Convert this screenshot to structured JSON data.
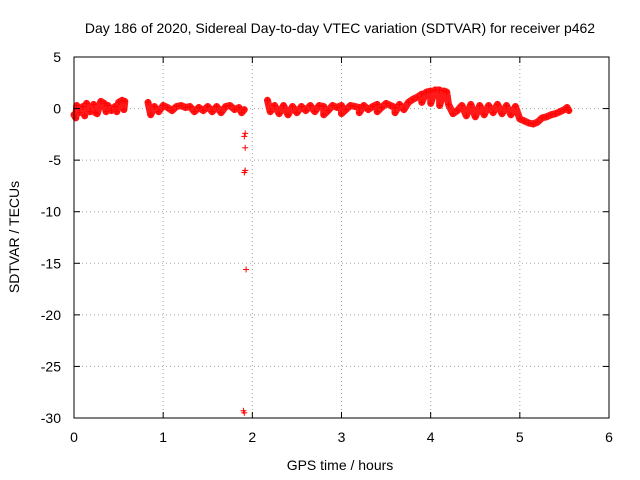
{
  "chart_data": {
    "type": "scatter",
    "title": "Day 186 of 2020, Sidereal Day-to-day VTEC variation (SDTVAR) for receiver p462",
    "xlabel": "GPS time / hours",
    "ylabel": "SDTVAR / TECUs",
    "xlim": [
      0,
      6
    ],
    "ylim": [
      -30,
      5
    ],
    "xticks": [
      0,
      1,
      2,
      3,
      4,
      5,
      6
    ],
    "yticks": [
      5,
      0,
      -5,
      -10,
      -15,
      -20,
      -25,
      -30
    ],
    "grid": true,
    "marker": "+",
    "series": [
      {
        "name": "SDTVAR",
        "color": "#ff0000",
        "points": [
          [
            0.0,
            -0.6
          ],
          [
            0.03,
            0.3
          ],
          [
            0.06,
            -0.4
          ],
          [
            0.1,
            0.2
          ],
          [
            0.14,
            0.5
          ],
          [
            0.18,
            -0.3
          ],
          [
            0.22,
            0.4
          ],
          [
            0.26,
            -0.5
          ],
          [
            0.3,
            0.7
          ],
          [
            0.34,
            0.5
          ],
          [
            0.38,
            0.3
          ],
          [
            0.42,
            -0.2
          ],
          [
            0.46,
            0.2
          ],
          [
            0.5,
            0.6
          ],
          [
            0.54,
            0.8
          ],
          [
            0.57,
            0.7
          ],
          [
            0.02,
            -0.9
          ],
          [
            0.12,
            -0.7
          ],
          [
            0.24,
            -0.4
          ],
          [
            0.36,
            -0.3
          ],
          [
            0.48,
            -0.3
          ],
          [
            0.56,
            -0.1
          ],
          [
            0.83,
            0.6
          ],
          [
            0.86,
            -0.6
          ],
          [
            0.9,
            0.2
          ],
          [
            0.95,
            -0.3
          ],
          [
            1.0,
            0.3
          ],
          [
            1.05,
            0.1
          ],
          [
            1.1,
            -0.2
          ],
          [
            1.15,
            0.2
          ],
          [
            1.2,
            0.3
          ],
          [
            1.25,
            0.1
          ],
          [
            1.3,
            0.2
          ],
          [
            1.35,
            -0.3
          ],
          [
            1.4,
            0.1
          ],
          [
            1.45,
            -0.2
          ],
          [
            1.5,
            0.2
          ],
          [
            1.55,
            -0.3
          ],
          [
            1.6,
            0.2
          ],
          [
            1.65,
            -0.4
          ],
          [
            1.7,
            0.2
          ],
          [
            1.75,
            0.3
          ],
          [
            1.8,
            -0.1
          ],
          [
            1.85,
            0.1
          ],
          [
            1.88,
            -0.4
          ],
          [
            1.91,
            -0.1
          ],
          [
            1.92,
            -2.4
          ],
          [
            1.91,
            -2.7
          ],
          [
            1.92,
            -3.8
          ],
          [
            1.92,
            -6.0
          ],
          [
            1.91,
            -6.2
          ],
          [
            1.93,
            -15.6
          ],
          [
            1.9,
            -29.3
          ],
          [
            1.91,
            -29.5
          ],
          [
            2.17,
            0.8
          ],
          [
            2.2,
            -0.3
          ],
          [
            2.25,
            0.3
          ],
          [
            2.3,
            -0.5
          ],
          [
            2.35,
            0.3
          ],
          [
            2.4,
            -0.6
          ],
          [
            2.45,
            0.2
          ],
          [
            2.5,
            -0.4
          ],
          [
            2.55,
            0.2
          ],
          [
            2.6,
            -0.2
          ],
          [
            2.65,
            0.3
          ],
          [
            2.7,
            -0.3
          ],
          [
            2.75,
            0.3
          ],
          [
            2.8,
            0.2
          ],
          [
            2.85,
            -0.2
          ],
          [
            2.9,
            0.3
          ],
          [
            2.95,
            0.1
          ],
          [
            3.0,
            0.3
          ],
          [
            3.05,
            -0.1
          ],
          [
            3.1,
            0.3
          ],
          [
            3.15,
            0.2
          ],
          [
            3.2,
            0.1
          ],
          [
            3.25,
            0.3
          ],
          [
            3.3,
            -0.1
          ],
          [
            3.35,
            0.2
          ],
          [
            3.4,
            0.4
          ],
          [
            3.45,
            0.1
          ],
          [
            3.5,
            0.5
          ],
          [
            3.55,
            0.3
          ],
          [
            3.6,
            0.1
          ],
          [
            3.65,
            0.4
          ],
          [
            3.7,
            -0.1
          ],
          [
            3.75,
            0.6
          ],
          [
            3.8,
            0.9
          ],
          [
            3.85,
            1.1
          ],
          [
            3.9,
            1.4
          ],
          [
            3.95,
            1.6
          ],
          [
            4.0,
            1.7
          ],
          [
            4.05,
            1.8
          ],
          [
            4.1,
            1.8
          ],
          [
            4.15,
            1.7
          ],
          [
            4.18,
            1.6
          ],
          [
            4.2,
            0.4
          ],
          [
            4.25,
            -0.5
          ],
          [
            4.3,
            -0.2
          ],
          [
            4.35,
            0.3
          ],
          [
            4.4,
            -0.7
          ],
          [
            4.45,
            0.4
          ],
          [
            4.5,
            -0.8
          ],
          [
            4.55,
            0.3
          ],
          [
            4.6,
            -0.6
          ],
          [
            4.65,
            0.3
          ],
          [
            4.7,
            -0.4
          ],
          [
            4.75,
            0.4
          ],
          [
            4.8,
            -0.5
          ],
          [
            4.85,
            0.3
          ],
          [
            4.9,
            -0.6
          ],
          [
            4.95,
            0.2
          ],
          [
            5.0,
            -1.0
          ],
          [
            5.05,
            -1.2
          ],
          [
            5.1,
            -1.4
          ],
          [
            5.15,
            -1.5
          ],
          [
            5.2,
            -1.3
          ],
          [
            5.25,
            -0.9
          ],
          [
            5.3,
            -0.8
          ],
          [
            5.35,
            -0.6
          ],
          [
            5.4,
            -0.5
          ],
          [
            5.45,
            -0.3
          ],
          [
            5.5,
            -0.1
          ],
          [
            5.53,
            0.1
          ],
          [
            5.55,
            -0.2
          ],
          [
            3.6,
            -0.4
          ],
          [
            3.4,
            -0.3
          ],
          [
            3.2,
            -0.4
          ],
          [
            3.0,
            -0.5
          ],
          [
            2.8,
            -0.6
          ],
          [
            4.1,
            0.3
          ],
          [
            4.0,
            0.5
          ],
          [
            3.9,
            0.6
          ]
        ]
      }
    ]
  }
}
